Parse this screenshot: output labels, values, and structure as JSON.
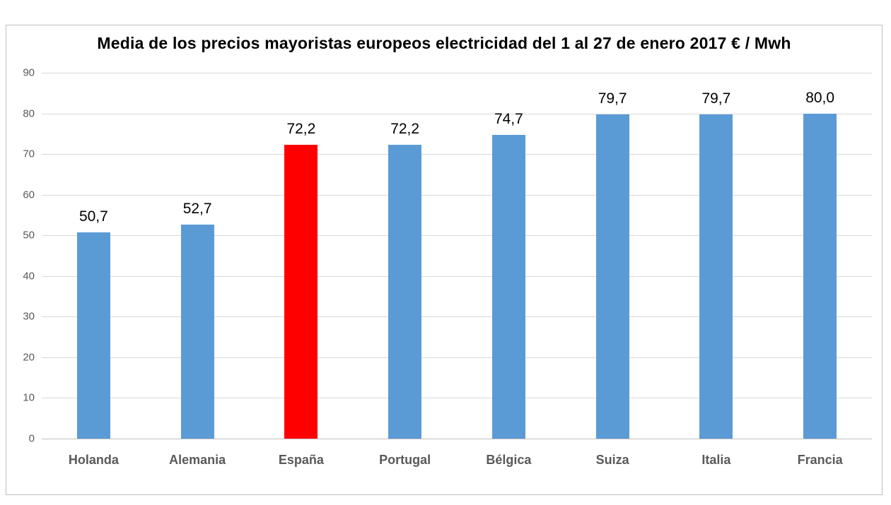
{
  "chart_data": {
    "type": "bar",
    "title": "Media de los precios mayoristas europeos electricidad del 1 al 27 de enero 2017 € / Mwh",
    "categories": [
      "Holanda",
      "Alemania",
      "España",
      "Portugal",
      "Bélgica",
      "Suiza",
      "Italia",
      "Francia"
    ],
    "values": [
      50.7,
      52.7,
      72.2,
      72.2,
      74.7,
      79.7,
      79.7,
      80.0
    ],
    "value_labels": [
      "50,7",
      "52,7",
      "72,2",
      "72,2",
      "74,7",
      "79,7",
      "79,7",
      "80,0"
    ],
    "bar_colors": [
      "#5B9BD5",
      "#5B9BD5",
      "#FF0000",
      "#5B9BD5",
      "#5B9BD5",
      "#5B9BD5",
      "#5B9BD5",
      "#5B9BD5"
    ],
    "highlight_category": "España",
    "xlabel": "",
    "ylabel": "",
    "ylim": [
      0,
      90
    ],
    "ytick_step": 10,
    "ytick_labels": [
      "0",
      "10",
      "20",
      "30",
      "40",
      "50",
      "60",
      "70",
      "80",
      "90"
    ],
    "grid": "horizontal",
    "legend": "none",
    "colors": {
      "bar_default": "#5B9BD5",
      "bar_highlight": "#FF0000",
      "gridline": "#D9D9D9",
      "axis_line": "#BFBFBF",
      "axis_text": "#595959",
      "value_label_text": "#000000",
      "frame_border": "#BFBFBF",
      "background": "#FFFFFF"
    }
  }
}
